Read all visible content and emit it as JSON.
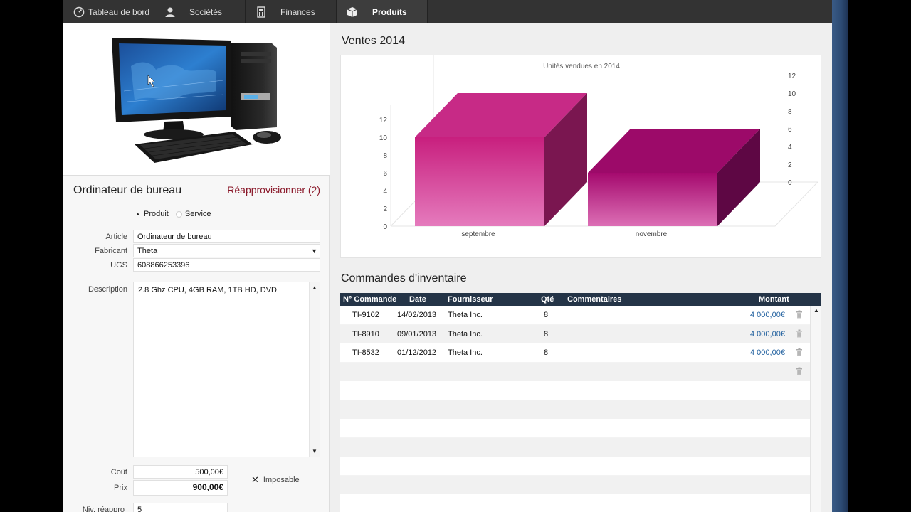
{
  "nav": {
    "tabs": [
      {
        "label": "Tableau de bord",
        "icon": "dashboard-icon"
      },
      {
        "label": "Sociétés",
        "icon": "person-icon"
      },
      {
        "label": "Finances",
        "icon": "calculator-icon"
      },
      {
        "label": "Produits",
        "icon": "box-icon"
      }
    ],
    "active": "Produits"
  },
  "product": {
    "title": "Ordinateur de bureau",
    "restock_link": "Réapprovisionner (2)",
    "type_options": [
      "Produit",
      "Service"
    ],
    "type_selected": "Produit",
    "fields": {
      "article_label": "Article",
      "article_value": "Ordinateur de bureau",
      "maker_label": "Fabricant",
      "maker_value": "Theta",
      "sku_label": "UGS",
      "sku_value": "608866253396",
      "desc_label": "Description",
      "desc_value": "2.8 Ghz CPU, 4GB RAM, 1TB HD, DVD",
      "cost_label": "Coût",
      "cost_value": "500,00€",
      "price_label": "Prix",
      "price_value": "900,00€",
      "taxable_label": "Imposable",
      "reorder_label": "Niv. réappro",
      "reorder_value": "5"
    }
  },
  "sales": {
    "title": "Ventes 2014"
  },
  "chart_data": {
    "type": "bar",
    "title": "Unités vendues en 2014",
    "categories": [
      "septembre",
      "novembre"
    ],
    "series": [
      {
        "values": [
          10,
          6
        ]
      }
    ],
    "ylim": [
      0,
      12
    ],
    "yticks": [
      0,
      2,
      4,
      6,
      8,
      10,
      12
    ],
    "grid": false,
    "style": "3d",
    "colors": [
      "#d02f8a",
      "#a80a72"
    ]
  },
  "orders": {
    "title": "Commandes d'inventaire",
    "columns": [
      "N° Commande",
      "Date",
      "Fournisseur",
      "Qté",
      "Commentaires",
      "Montant"
    ],
    "rows": [
      {
        "id": "TI-9102",
        "date": "14/02/2013",
        "supplier": "Theta Inc.",
        "qty": "8",
        "comment": "",
        "amount": "4 000,00€"
      },
      {
        "id": "TI-8910",
        "date": "09/01/2013",
        "supplier": "Theta Inc.",
        "qty": "8",
        "comment": "",
        "amount": "4 000,00€"
      },
      {
        "id": "TI-8532",
        "date": "01/12/2012",
        "supplier": "Theta Inc.",
        "qty": "8",
        "comment": "",
        "amount": "4 000,00€"
      }
    ]
  },
  "colors": {
    "nav_bg": "#333333",
    "accent_link": "#8b1a2b",
    "table_header": "#243447",
    "amount": "#1f5f9e"
  }
}
